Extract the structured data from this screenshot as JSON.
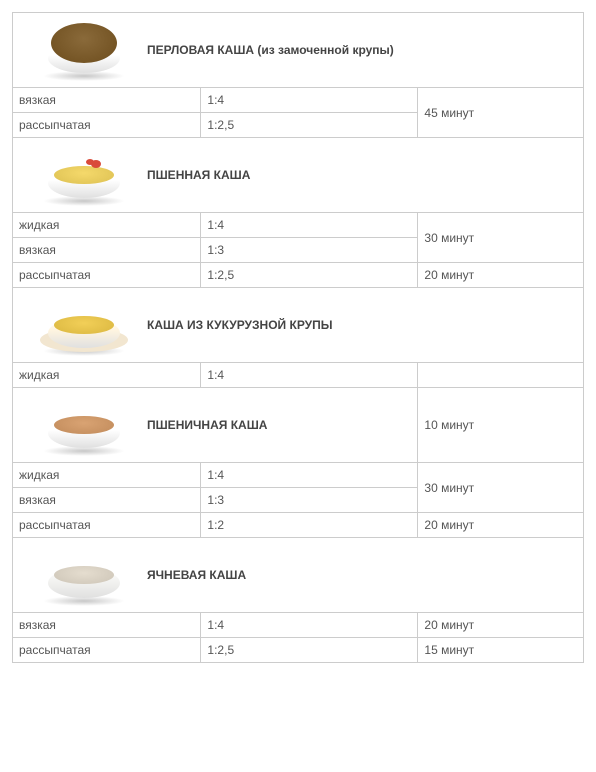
{
  "sections": [
    {
      "title": "ПЕРЛОВАЯ КАША (из замоченной крупы)",
      "bowl": {
        "food_color": "#8a6a3a",
        "bowl_color": "#ffffff",
        "mound": true
      },
      "rows": [
        {
          "c1": "вязкая",
          "c2": "1:4",
          "c3": "45 минут",
          "rowspan": 2
        },
        {
          "c1": "рассыпчатая",
          "c2": "1:2,5"
        }
      ]
    },
    {
      "title": "ПШЕННАЯ КАША",
      "bowl": {
        "food_color": "#f5d96b",
        "bowl_color": "#ffffff",
        "garnish": "#d94a3a"
      },
      "rows": [
        {
          "c1": "жидкая",
          "c2": "1:4",
          "c3": "30 минут",
          "rowspan": 2
        },
        {
          "c1": "вязкая",
          "c2": "1:3"
        },
        {
          "c1": "рассыпчатая",
          "c2": "1:2,5",
          "c3": "20 минут",
          "rowspan": 1
        }
      ]
    },
    {
      "title": "КАША ИЗ КУКУРУЗНОЙ КРУПЫ",
      "bowl": {
        "food_color": "#f2cf58",
        "bowl_color": "#fff5e0",
        "plate": "#f2e6d0"
      },
      "rows": [
        {
          "c1": "жидкая",
          "c2": "1:4",
          "c3": "",
          "rowspan": 1,
          "hide_border_bottom_right": true
        }
      ]
    },
    {
      "title": "ПШЕНИЧНАЯ КАША",
      "title_right": "10 минут",
      "bowl": {
        "food_color": "#d9a373",
        "bowl_color": "#ffffff"
      },
      "rows": [
        {
          "c1": "жидкая",
          "c2": "1:4",
          "c3": "30 минут",
          "rowspan": 2
        },
        {
          "c1": "вязкая",
          "c2": "1:3"
        },
        {
          "c1": "рассыпчатая",
          "c2": "1:2",
          "c3": "20 минут",
          "rowspan": 1
        }
      ]
    },
    {
      "title": "ЯЧНЕВАЯ КАША",
      "bowl": {
        "food_color": "#e5ddcf",
        "bowl_color": "#f4f4f2",
        "glass": true
      },
      "rows": [
        {
          "c1": "вязкая",
          "c2": "1:4",
          "c3": "20 минут",
          "rowspan": 1
        },
        {
          "c1": "рассыпчатая",
          "c2": "1:2,5",
          "c3": "15 минут",
          "rowspan": 1
        }
      ]
    }
  ]
}
